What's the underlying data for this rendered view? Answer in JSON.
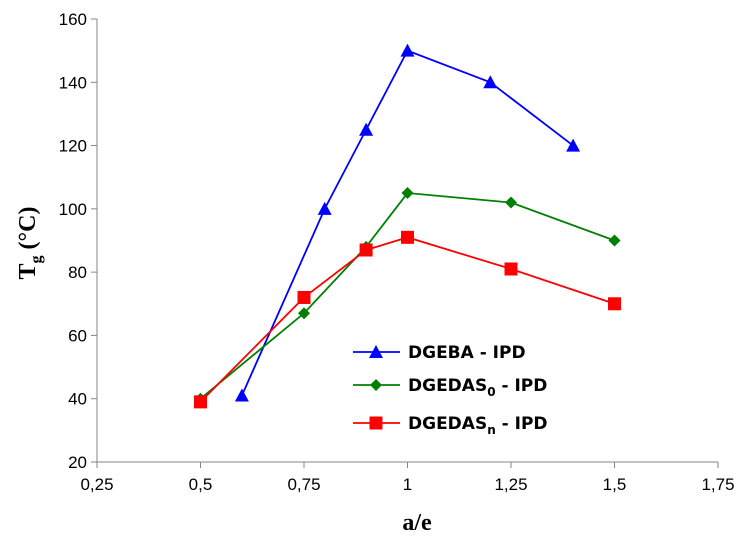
{
  "chart_data": {
    "type": "line",
    "xlabel": "a/e",
    "ylabel": {
      "main": "T",
      "sub": "g",
      "rest": " (°C)"
    },
    "xlim": [
      0.25,
      1.75
    ],
    "ylim": [
      20,
      160
    ],
    "x_ticks": [
      0.25,
      0.5,
      0.75,
      1,
      1.25,
      1.5,
      1.75
    ],
    "x_tick_labels": [
      "0,25",
      "0,5",
      "0,75",
      "1",
      "1,25",
      "1,5",
      "1,75"
    ],
    "y_ticks": [
      20,
      40,
      60,
      80,
      100,
      120,
      140,
      160
    ],
    "y_tick_labels": [
      "20",
      "40",
      "60",
      "80",
      "100",
      "120",
      "140",
      "160"
    ],
    "grid": false,
    "legend_position": "lower-right",
    "series": [
      {
        "label_main": "DGEBA - IPD",
        "label_sub": "",
        "label_rest": "",
        "color": "#0000ff",
        "marker": "triangle",
        "points": [
          [
            0.6,
            41
          ],
          [
            0.8,
            100
          ],
          [
            0.9,
            125
          ],
          [
            1.0,
            150
          ],
          [
            1.2,
            140
          ],
          [
            1.4,
            120
          ]
        ]
      },
      {
        "label_main": "DGEDAS",
        "label_sub": "0",
        "label_rest": " - IPD",
        "color": "#008000",
        "marker": "diamond",
        "points": [
          [
            0.5,
            40
          ],
          [
            0.75,
            67
          ],
          [
            0.9,
            88
          ],
          [
            1.0,
            105
          ],
          [
            1.25,
            102
          ],
          [
            1.5,
            90
          ]
        ]
      },
      {
        "label_main": "DGEDAS",
        "label_sub": "n",
        "label_rest": " - IPD",
        "color": "#ff0000",
        "marker": "square",
        "points": [
          [
            0.5,
            39
          ],
          [
            0.75,
            72
          ],
          [
            0.9,
            87
          ],
          [
            1.0,
            91
          ],
          [
            1.25,
            81
          ],
          [
            1.5,
            70
          ]
        ]
      }
    ]
  }
}
